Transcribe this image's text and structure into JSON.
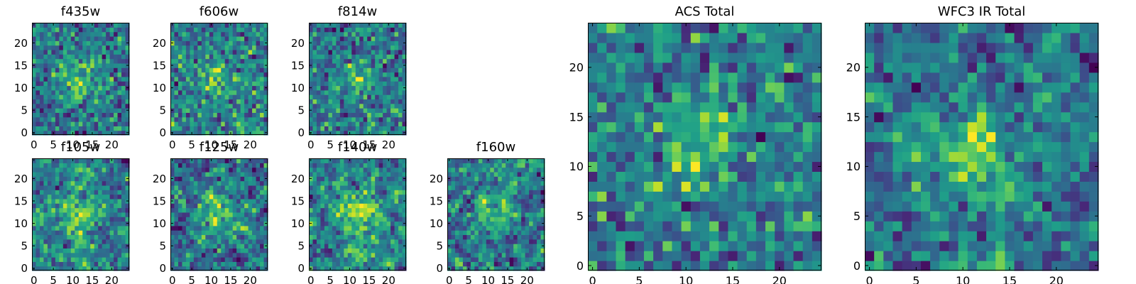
{
  "figure": {
    "colormap": "viridis",
    "colors": {
      "low": "#440154",
      "mid": "#21918c",
      "high": "#fde725"
    }
  },
  "chart_data": [
    {
      "type": "heatmap",
      "title": "f435w",
      "size": 25,
      "xlim": [
        0,
        24
      ],
      "ylim": [
        0,
        24
      ],
      "xticks": [
        0,
        5,
        10,
        15,
        20
      ],
      "yticks": [
        0,
        5,
        10,
        15,
        20
      ],
      "xticklabels": [
        "0",
        "5",
        "10",
        "15",
        "20"
      ],
      "yticklabels": [
        "0",
        "5",
        "10",
        "15",
        "20"
      ],
      "center": [
        12,
        12
      ],
      "peak_strength": 0.28,
      "peak_width": 4,
      "noise": 0.38,
      "smoothing": 0,
      "seed": 101
    },
    {
      "type": "heatmap",
      "title": "f606w",
      "size": 25,
      "xlim": [
        0,
        24
      ],
      "ylim": [
        0,
        24
      ],
      "xticks": [
        0,
        5,
        10,
        15,
        20
      ],
      "yticks": [
        0,
        5,
        10,
        15,
        20
      ],
      "xticklabels": [
        "0",
        "5",
        "10",
        "15",
        "20"
      ],
      "yticklabels": [
        "0",
        "5",
        "10",
        "15",
        "20"
      ],
      "center": [
        12,
        12
      ],
      "peak_strength": 0.3,
      "peak_width": 3,
      "noise": 0.4,
      "smoothing": 0,
      "seed": 202
    },
    {
      "type": "heatmap",
      "title": "f814w",
      "size": 25,
      "xlim": [
        0,
        24
      ],
      "ylim": [
        0,
        24
      ],
      "xticks": [
        0,
        5,
        10,
        15,
        20
      ],
      "yticks": [
        0,
        5,
        10,
        15,
        20
      ],
      "xticklabels": [
        "0",
        "5",
        "10",
        "15",
        "20"
      ],
      "yticklabels": [
        "0",
        "5",
        "10",
        "15",
        "20"
      ],
      "center": [
        12,
        12
      ],
      "peak_strength": 0.3,
      "peak_width": 3,
      "noise": 0.42,
      "smoothing": 0,
      "seed": 303
    },
    {
      "type": "heatmap",
      "title": "f105w",
      "size": 25,
      "xlim": [
        0,
        24
      ],
      "ylim": [
        0,
        24
      ],
      "xticks": [
        0,
        5,
        10,
        15,
        20
      ],
      "yticks": [
        0,
        5,
        10,
        15,
        20
      ],
      "xticklabels": [
        "0",
        "5",
        "10",
        "15",
        "20"
      ],
      "yticklabels": [
        "0",
        "5",
        "10",
        "15",
        "20"
      ],
      "center": [
        12,
        12
      ],
      "peak_strength": 0.26,
      "peak_width": 4,
      "noise": 0.46,
      "smoothing": 1,
      "seed": 404
    },
    {
      "type": "heatmap",
      "title": "f125w",
      "size": 25,
      "xlim": [
        0,
        24
      ],
      "ylim": [
        0,
        24
      ],
      "xticks": [
        0,
        5,
        10,
        15,
        20
      ],
      "yticks": [
        0,
        5,
        10,
        15,
        20
      ],
      "xticklabels": [
        "0",
        "5",
        "10",
        "15",
        "20"
      ],
      "yticklabels": [
        "0",
        "5",
        "10",
        "15",
        "20"
      ],
      "center": [
        12,
        12
      ],
      "peak_strength": 0.26,
      "peak_width": 4,
      "noise": 0.46,
      "smoothing": 1,
      "seed": 505
    },
    {
      "type": "heatmap",
      "title": "f140w",
      "size": 25,
      "xlim": [
        0,
        24
      ],
      "ylim": [
        0,
        24
      ],
      "xticks": [
        0,
        5,
        10,
        15,
        20
      ],
      "yticks": [
        0,
        5,
        10,
        15,
        20
      ],
      "xticklabels": [
        "0",
        "5",
        "10",
        "15",
        "20"
      ],
      "yticklabels": [
        "0",
        "5",
        "10",
        "15",
        "20"
      ],
      "center": [
        12,
        12
      ],
      "peak_strength": 0.28,
      "peak_width": 4,
      "noise": 0.44,
      "smoothing": 1,
      "seed": 606
    },
    {
      "type": "heatmap",
      "title": "f160w",
      "size": 25,
      "xlim": [
        0,
        24
      ],
      "ylim": [
        0,
        24
      ],
      "xticks": [
        0,
        5,
        10,
        15,
        20
      ],
      "yticks": [
        0,
        5,
        10,
        15,
        20
      ],
      "xticklabels": [
        "0",
        "5",
        "10",
        "15",
        "20"
      ],
      "yticklabels": [
        "0",
        "5",
        "10",
        "15",
        "20"
      ],
      "center": [
        12,
        12
      ],
      "peak_strength": 0.3,
      "peak_width": 3,
      "noise": 0.44,
      "smoothing": 1,
      "seed": 707
    },
    {
      "type": "heatmap",
      "title": "ACS Total",
      "size": 25,
      "xlim": [
        0,
        24
      ],
      "ylim": [
        0,
        24
      ],
      "xticks": [
        0,
        5,
        10,
        15,
        20
      ],
      "yticks": [
        0,
        5,
        10,
        15,
        20
      ],
      "xticklabels": [
        "0",
        "5",
        "10",
        "15",
        "20"
      ],
      "yticklabels": [
        "0",
        "5",
        "10",
        "15",
        "20"
      ],
      "center": [
        11.5,
        12
      ],
      "peak_strength": 0.34,
      "peak_width": 3,
      "noise": 0.36,
      "smoothing": 0,
      "seed": 808
    },
    {
      "type": "heatmap",
      "title": "WFC3 IR Total",
      "size": 25,
      "xlim": [
        0,
        24
      ],
      "ylim": [
        0,
        24
      ],
      "xticks": [
        0,
        5,
        10,
        15,
        20
      ],
      "yticks": [
        0,
        5,
        10,
        15,
        20
      ],
      "xticklabels": [
        "0",
        "5",
        "10",
        "15",
        "20"
      ],
      "yticklabels": [
        "0",
        "5",
        "10",
        "15",
        "20"
      ],
      "center": [
        11.5,
        12.5
      ],
      "peak_strength": 0.34,
      "peak_width": 3,
      "noise": 0.4,
      "smoothing": 1,
      "seed": 909
    }
  ]
}
